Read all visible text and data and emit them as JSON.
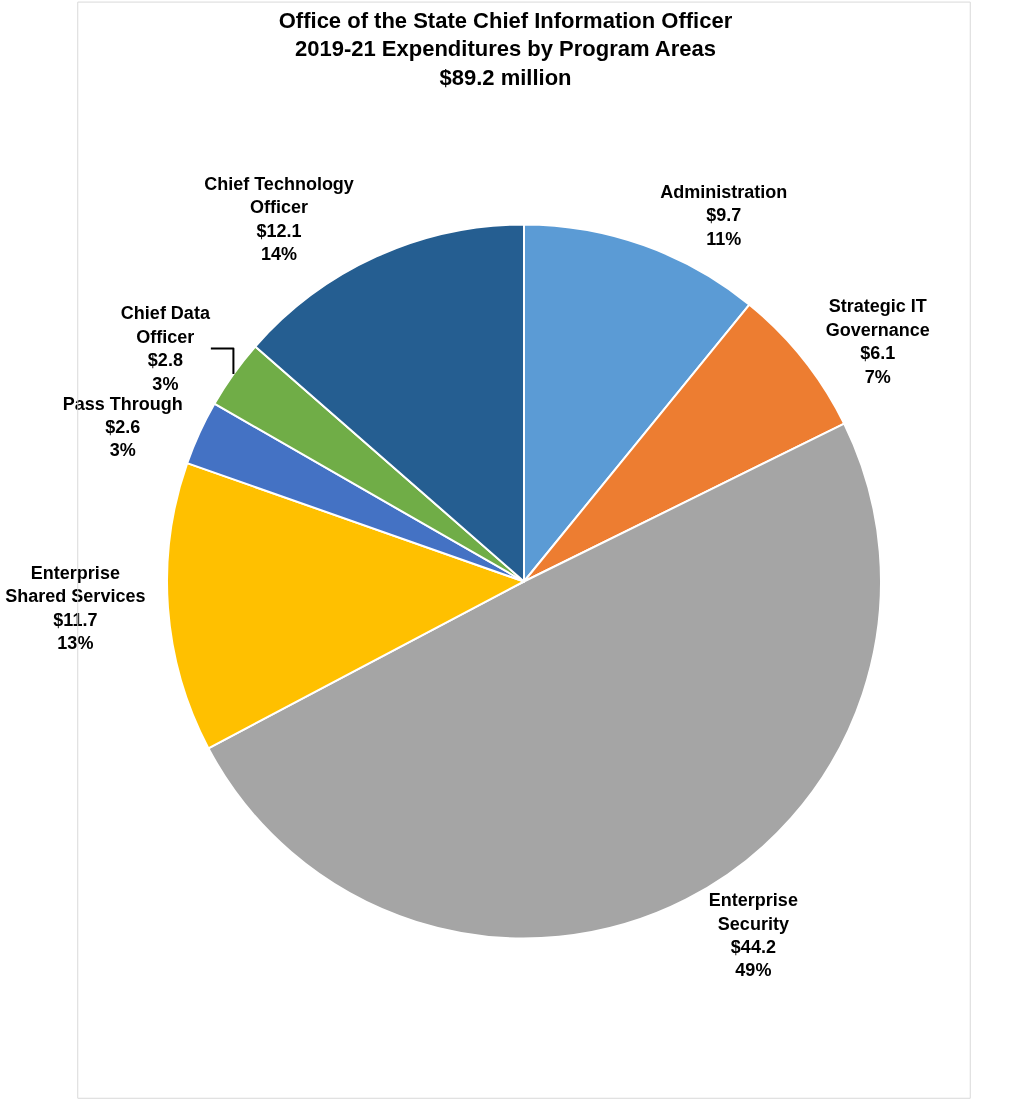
{
  "chart_data": {
    "type": "pie",
    "title": "Office of the State Chief Information Officer\n2019-21 Expenditures by Program Areas\n$89.2 million",
    "categories": [
      "Administration",
      "Strategic IT Governance",
      "Enterprise Security",
      "Enterprise Shared Services",
      "Pass Through",
      "Chief Data Officer",
      "Chief Technology Officer"
    ],
    "values": [
      9.7,
      6.1,
      44.2,
      11.7,
      2.6,
      2.8,
      12.1
    ],
    "value_labels": [
      "$9.7\n11%",
      "$6.1\n7%",
      "$44.2\n49%",
      "$11.7\n13%",
      "$2.6\n3%",
      "$2.8\n3%",
      "$12.1\n14%"
    ],
    "colors": [
      "#5b9bd5",
      "#ed7d31",
      "#a5a5a5",
      "#ffc000",
      "#4472c4",
      "#70ad47",
      "#255e91"
    ],
    "legend": false
  }
}
